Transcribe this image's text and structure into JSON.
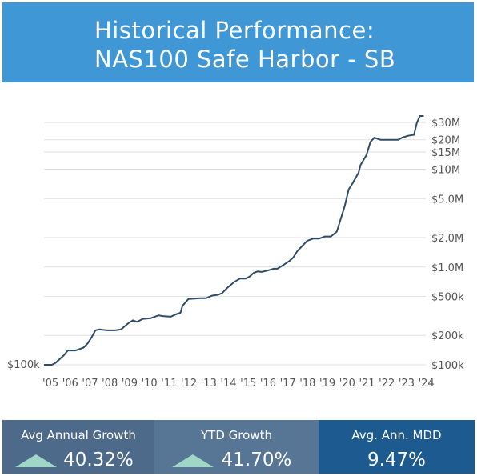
{
  "header": {
    "line1": "Historical Performance:",
    "line2": "NAS100 Safe Harbor - SB"
  },
  "stats": [
    {
      "label": "Avg Annual Growth",
      "value": "40.32%",
      "arrow": "up-triangle"
    },
    {
      "label": "YTD Growth",
      "value": "41.70%",
      "arrow": "up-triangle"
    },
    {
      "label": "Avg. Ann. MDD",
      "value": "9.47%"
    }
  ],
  "colors": {
    "header_bg": "#3f97d6",
    "line": "#2f4b66",
    "stat1_bg": "#4d6a8a",
    "stat2_bg": "#577595",
    "stat3_bg": "#1c5a8f",
    "arrow": "#9fd6c8"
  },
  "chart_data": {
    "type": "line",
    "yscale": "log",
    "ylim": [
      100000,
      35000000
    ],
    "xlim": [
      2005,
      2024.3
    ],
    "grid": true,
    "start_label": "$100k",
    "y_ticks": [
      {
        "v": 100000,
        "label": "$100k"
      },
      {
        "v": 200000,
        "label": "$200k"
      },
      {
        "v": 500000,
        "label": "$500k"
      },
      {
        "v": 1000000,
        "label": "$1.0M"
      },
      {
        "v": 2000000,
        "label": "$2.0M"
      },
      {
        "v": 5000000,
        "label": "$5.0M"
      },
      {
        "v": 10000000,
        "label": "$10M"
      },
      {
        "v": 15000000,
        "label": "$15M"
      },
      {
        "v": 20000000,
        "label": "$20M"
      },
      {
        "v": 30000000,
        "label": "$30M"
      }
    ],
    "x_ticks": [
      {
        "v": 2005,
        "label": "'05"
      },
      {
        "v": 2006,
        "label": "'06"
      },
      {
        "v": 2007,
        "label": "'07"
      },
      {
        "v": 2008,
        "label": "'08"
      },
      {
        "v": 2009,
        "label": "'09"
      },
      {
        "v": 2010,
        "label": "'10"
      },
      {
        "v": 2011,
        "label": "'11"
      },
      {
        "v": 2012,
        "label": "'12"
      },
      {
        "v": 2013,
        "label": "'13"
      },
      {
        "v": 2014,
        "label": "'14"
      },
      {
        "v": 2015,
        "label": "'15"
      },
      {
        "v": 2016,
        "label": "'16"
      },
      {
        "v": 2017,
        "label": "'17"
      },
      {
        "v": 2018,
        "label": "'18"
      },
      {
        "v": 2019,
        "label": "'19"
      },
      {
        "v": 2020,
        "label": "'20"
      },
      {
        "v": 2021,
        "label": "'21"
      },
      {
        "v": 2022,
        "label": "'22"
      },
      {
        "v": 2023,
        "label": "'23"
      },
      {
        "v": 2024,
        "label": "'24"
      }
    ],
    "series": [
      {
        "points": [
          [
            2005.0,
            100000
          ],
          [
            2005.4,
            100000
          ],
          [
            2005.6,
            105000
          ],
          [
            2005.8,
            115000
          ],
          [
            2006.0,
            125000
          ],
          [
            2006.2,
            140000
          ],
          [
            2006.6,
            140000
          ],
          [
            2006.8,
            145000
          ],
          [
            2007.0,
            150000
          ],
          [
            2007.2,
            165000
          ],
          [
            2007.4,
            190000
          ],
          [
            2007.6,
            225000
          ],
          [
            2007.8,
            230000
          ],
          [
            2008.2,
            225000
          ],
          [
            2008.6,
            225000
          ],
          [
            2008.9,
            230000
          ],
          [
            2009.1,
            250000
          ],
          [
            2009.3,
            270000
          ],
          [
            2009.5,
            285000
          ],
          [
            2009.7,
            275000
          ],
          [
            2010.0,
            295000
          ],
          [
            2010.4,
            300000
          ],
          [
            2010.6,
            310000
          ],
          [
            2010.8,
            320000
          ],
          [
            2011.0,
            315000
          ],
          [
            2011.4,
            310000
          ],
          [
            2011.7,
            330000
          ],
          [
            2011.9,
            340000
          ],
          [
            2012.0,
            400000
          ],
          [
            2012.3,
            470000
          ],
          [
            2012.6,
            475000
          ],
          [
            2012.9,
            480000
          ],
          [
            2013.2,
            480000
          ],
          [
            2013.5,
            510000
          ],
          [
            2013.8,
            520000
          ],
          [
            2014.0,
            540000
          ],
          [
            2014.3,
            620000
          ],
          [
            2014.6,
            700000
          ],
          [
            2014.9,
            760000
          ],
          [
            2015.2,
            760000
          ],
          [
            2015.4,
            800000
          ],
          [
            2015.6,
            870000
          ],
          [
            2015.8,
            900000
          ],
          [
            2016.0,
            890000
          ],
          [
            2016.3,
            920000
          ],
          [
            2016.6,
            960000
          ],
          [
            2016.8,
            960000
          ],
          [
            2017.1,
            1050000
          ],
          [
            2017.4,
            1150000
          ],
          [
            2017.6,
            1250000
          ],
          [
            2017.8,
            1450000
          ],
          [
            2018.0,
            1600000
          ],
          [
            2018.3,
            1850000
          ],
          [
            2018.6,
            1950000
          ],
          [
            2018.9,
            1950000
          ],
          [
            2019.2,
            2050000
          ],
          [
            2019.5,
            2050000
          ],
          [
            2019.8,
            2300000
          ],
          [
            2020.0,
            3100000
          ],
          [
            2020.2,
            4200000
          ],
          [
            2020.4,
            6200000
          ],
          [
            2020.6,
            7200000
          ],
          [
            2020.9,
            9200000
          ],
          [
            2021.0,
            11000000
          ],
          [
            2021.3,
            14000000
          ],
          [
            2021.5,
            19000000
          ],
          [
            2021.7,
            21000000
          ],
          [
            2022.0,
            20000000
          ],
          [
            2022.5,
            20000000
          ],
          [
            2022.9,
            20000000
          ],
          [
            2023.1,
            21000000
          ],
          [
            2023.4,
            22000000
          ],
          [
            2023.7,
            22500000
          ],
          [
            2023.85,
            30000000
          ],
          [
            2024.0,
            35000000
          ],
          [
            2024.2,
            35000000
          ]
        ]
      }
    ]
  }
}
